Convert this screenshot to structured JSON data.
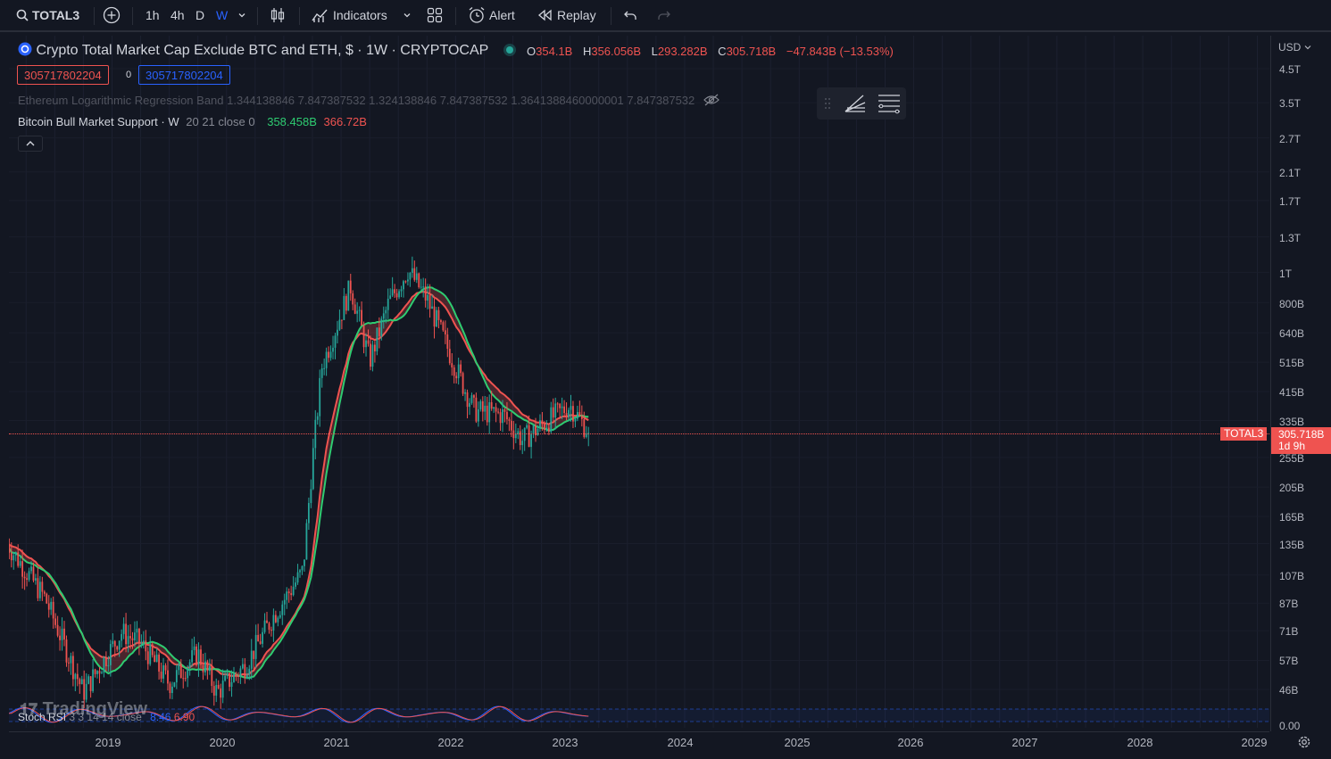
{
  "topbar": {
    "symbol": "TOTAL3",
    "intervals": [
      "1h",
      "4h",
      "D",
      "W"
    ],
    "indicators_label": "Indicators",
    "alert_label": "Alert",
    "replay_label": "Replay"
  },
  "legend": {
    "title": "Crypto Total Market Cap Exclude BTC and ETH, $ · 1W · CRYPTOCAP",
    "ohlc": {
      "o_label": "O",
      "o": "354.1B",
      "h_label": "H",
      "h": "356.056B",
      "l_label": "L",
      "l": "293.282B",
      "c_label": "C",
      "c": "305.718B",
      "change": "−47.843B (−13.53%)"
    },
    "sell_box": "305717802204",
    "spread": "0",
    "buy_box": "305717802204",
    "indicator1": "Ethereum Logarithmic Regression Band 1.344138846 7.847387532 1.324138846 7.847387532 1.3641388460000001 7.847387532",
    "indicator2_name": "Bitcoin Bull Market Support · W",
    "indicator2_params": "20 21 close 0",
    "indicator2_v1": "358.458B",
    "indicator2_v2": "366.72B",
    "stoch_label": "Stoch RSI",
    "stoch_params": "3 3 14 14 close",
    "stoch_k": "8.46",
    "stoch_d": "6.90",
    "watermark": "TradingView"
  },
  "price_axis": {
    "currency": "USD",
    "labels": [
      "4.5T",
      "3.5T",
      "2.7T",
      "2.1T",
      "1.7T",
      "1.3T",
      "1T",
      "800B",
      "640B",
      "515B",
      "415B",
      "335B",
      "255B",
      "205B",
      "165B",
      "135B",
      "107B",
      "87B",
      "71B",
      "57B",
      "46B"
    ],
    "stoch_label": "0.00",
    "symbol_tag": "TOTAL3",
    "last_price": "305.718B",
    "countdown": "1d 9h"
  },
  "time_axis": {
    "labels": [
      "2019",
      "2020",
      "2021",
      "2022",
      "2023",
      "2024",
      "2025",
      "2026",
      "2027",
      "2028",
      "2029"
    ]
  },
  "colors": {
    "background": "#131722",
    "up": "#26a69a",
    "down": "#ef5350",
    "ma_green": "#2ecc71",
    "ma_red": "#ef5350",
    "text": "#d1d4dc"
  },
  "chart_data": {
    "type": "line",
    "title": "Crypto Total Market Cap Exclude BTC and ETH, $ · 1W · CRYPTOCAP",
    "scale": "log",
    "y_unit": "USD",
    "ylim": [
      46000000000,
      4500000000000
    ],
    "xlim": [
      "2018-05",
      "2029-03"
    ],
    "x": [
      "2018-05",
      "2018-09",
      "2019-01",
      "2019-05",
      "2019-07",
      "2019-10",
      "2020-01",
      "2020-03",
      "2020-06",
      "2020-09",
      "2020-12",
      "2021-01",
      "2021-02",
      "2021-05",
      "2021-07",
      "2021-09",
      "2021-11",
      "2022-01",
      "2022-05",
      "2022-06",
      "2022-09",
      "2022-11",
      "2023-02",
      "2023-04",
      "2023-06"
    ],
    "series": [
      {
        "name": "TOTAL3",
        "values": [
          135000000000,
          90000000000,
          45000000000,
          70000000000,
          65000000000,
          48000000000,
          60000000000,
          45000000000,
          55000000000,
          80000000000,
          110000000000,
          250000000000,
          500000000000,
          900000000000,
          520000000000,
          800000000000,
          1020000000000,
          820000000000,
          420000000000,
          360000000000,
          350000000000,
          290000000000,
          340000000000,
          375000000000,
          305718000000
        ]
      }
    ]
  }
}
